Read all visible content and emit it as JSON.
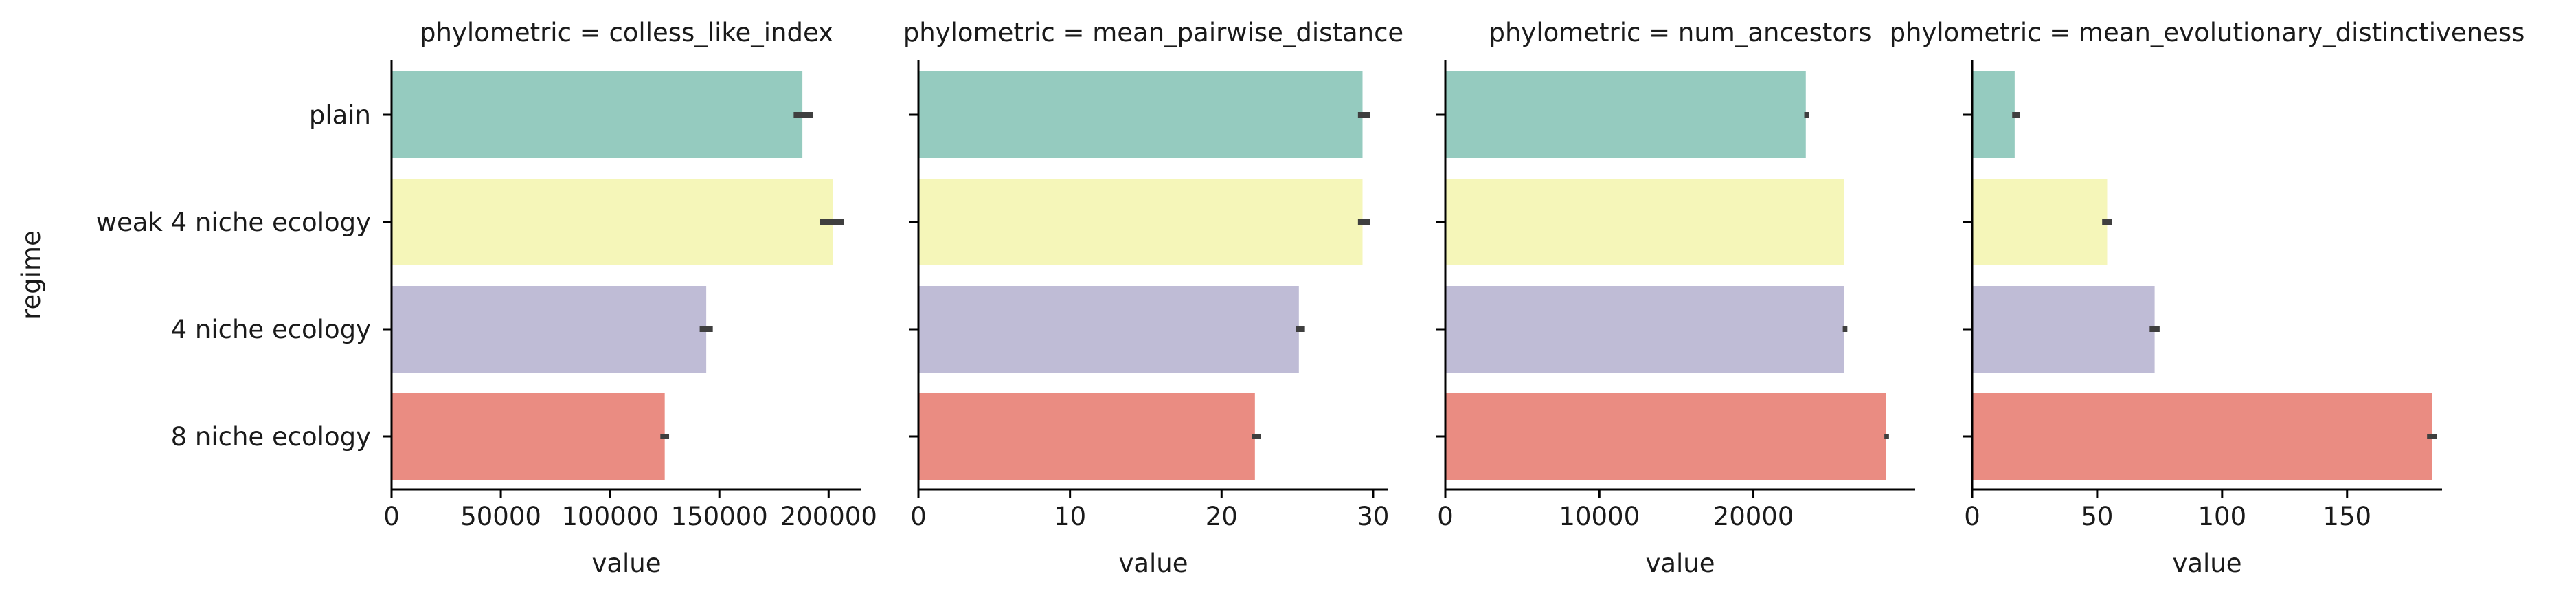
{
  "chart_data": {
    "type": "bar",
    "orientation": "horizontal",
    "ylabel": "regime",
    "categories": [
      "plain",
      "weak 4 niche ecology",
      "4 niche ecology",
      "8 niche ecology"
    ],
    "colors": [
      "#95cbbf",
      "#f5f6b9",
      "#bfbcd6",
      "#ea8c82"
    ],
    "facets": [
      {
        "title": "phylometric = colless_like_index",
        "xlabel": "value",
        "xlim": [
          0,
          215000
        ],
        "ticks": [
          0,
          50000,
          100000,
          150000,
          200000
        ],
        "tick_labels": [
          "0",
          "50000",
          "100000",
          "150000",
          "200000"
        ],
        "values": [
          188000,
          202000,
          144000,
          125000
        ],
        "ci": [
          [
            184000,
            193000
          ],
          [
            196000,
            207000
          ],
          [
            141000,
            147000
          ],
          [
            123000,
            127000
          ]
        ]
      },
      {
        "title": "phylometric = mean_pairwise_distance",
        "xlabel": "value",
        "xlim": [
          0,
          31
        ],
        "ticks": [
          0,
          10,
          20,
          30
        ],
        "tick_labels": [
          "0",
          "10",
          "20",
          "30"
        ],
        "values": [
          29.3,
          29.3,
          25.1,
          22.2
        ],
        "ci": [
          [
            29.0,
            29.8
          ],
          [
            29.0,
            29.8
          ],
          [
            24.9,
            25.5
          ],
          [
            22.0,
            22.6
          ]
        ]
      },
      {
        "title": "phylometric = num_ancestors",
        "xlabel": "value",
        "xlim": [
          0,
          30500
        ],
        "ticks": [
          0,
          10000,
          20000
        ],
        "tick_labels": [
          "0",
          "10000",
          "20000"
        ],
        "values": [
          23400,
          25900,
          25900,
          28600
        ],
        "ci": [
          [
            23300,
            23600
          ],
          null,
          [
            25800,
            26100
          ],
          [
            28500,
            28800
          ]
        ]
      },
      {
        "title": "phylometric = mean_evolutionary_distinctiveness",
        "xlabel": "value",
        "xlim": [
          0,
          188
        ],
        "ticks": [
          0,
          50,
          100,
          150
        ],
        "tick_labels": [
          "0",
          "50",
          "100",
          "150"
        ],
        "values": [
          17,
          54,
          73,
          184
        ],
        "ci": [
          [
            16,
            19
          ],
          [
            52,
            56
          ],
          [
            71,
            75
          ],
          [
            182,
            186
          ]
        ]
      }
    ]
  }
}
